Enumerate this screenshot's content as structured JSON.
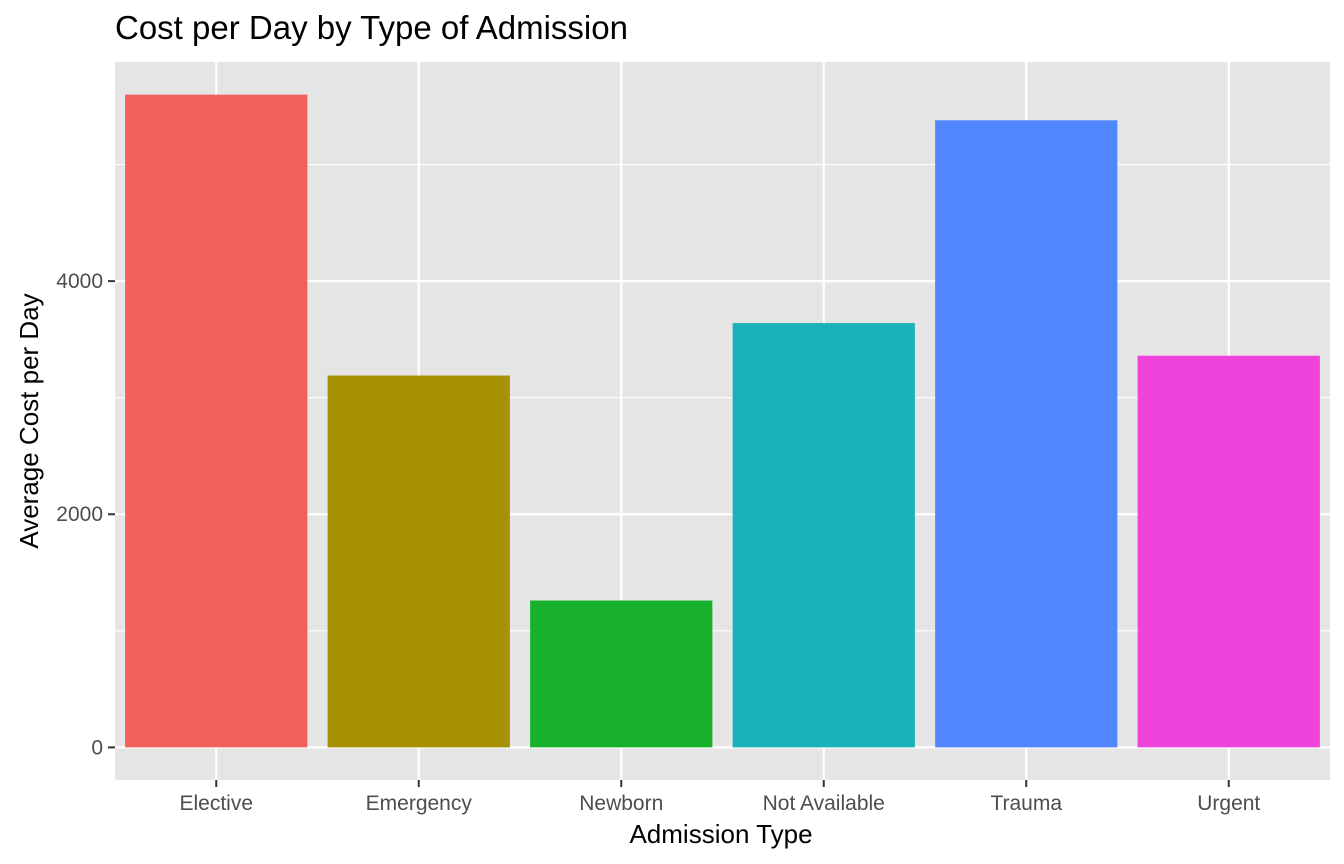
{
  "chart_data": {
    "type": "bar",
    "title": "Cost per Day by Type of Admission",
    "xlabel": "Admission Type",
    "ylabel": "Average Cost per Day",
    "categories": [
      "Elective",
      "Emergency",
      "Newborn",
      "Not Available",
      "Trauma",
      "Urgent"
    ],
    "values": [
      5600,
      3190,
      1260,
      3640,
      5380,
      3360
    ],
    "colors": [
      "#F2605C",
      "#A69102",
      "#17B12E",
      "#18B2B8",
      "#5087FE",
      "#EF44DB"
    ],
    "yticks": [
      0,
      2000,
      4000
    ],
    "ylim": [
      -280,
      5880
    ],
    "grid": true,
    "panel_background": "#E5E5E5",
    "grid_color": "#FFFFFF",
    "legend": "none"
  }
}
